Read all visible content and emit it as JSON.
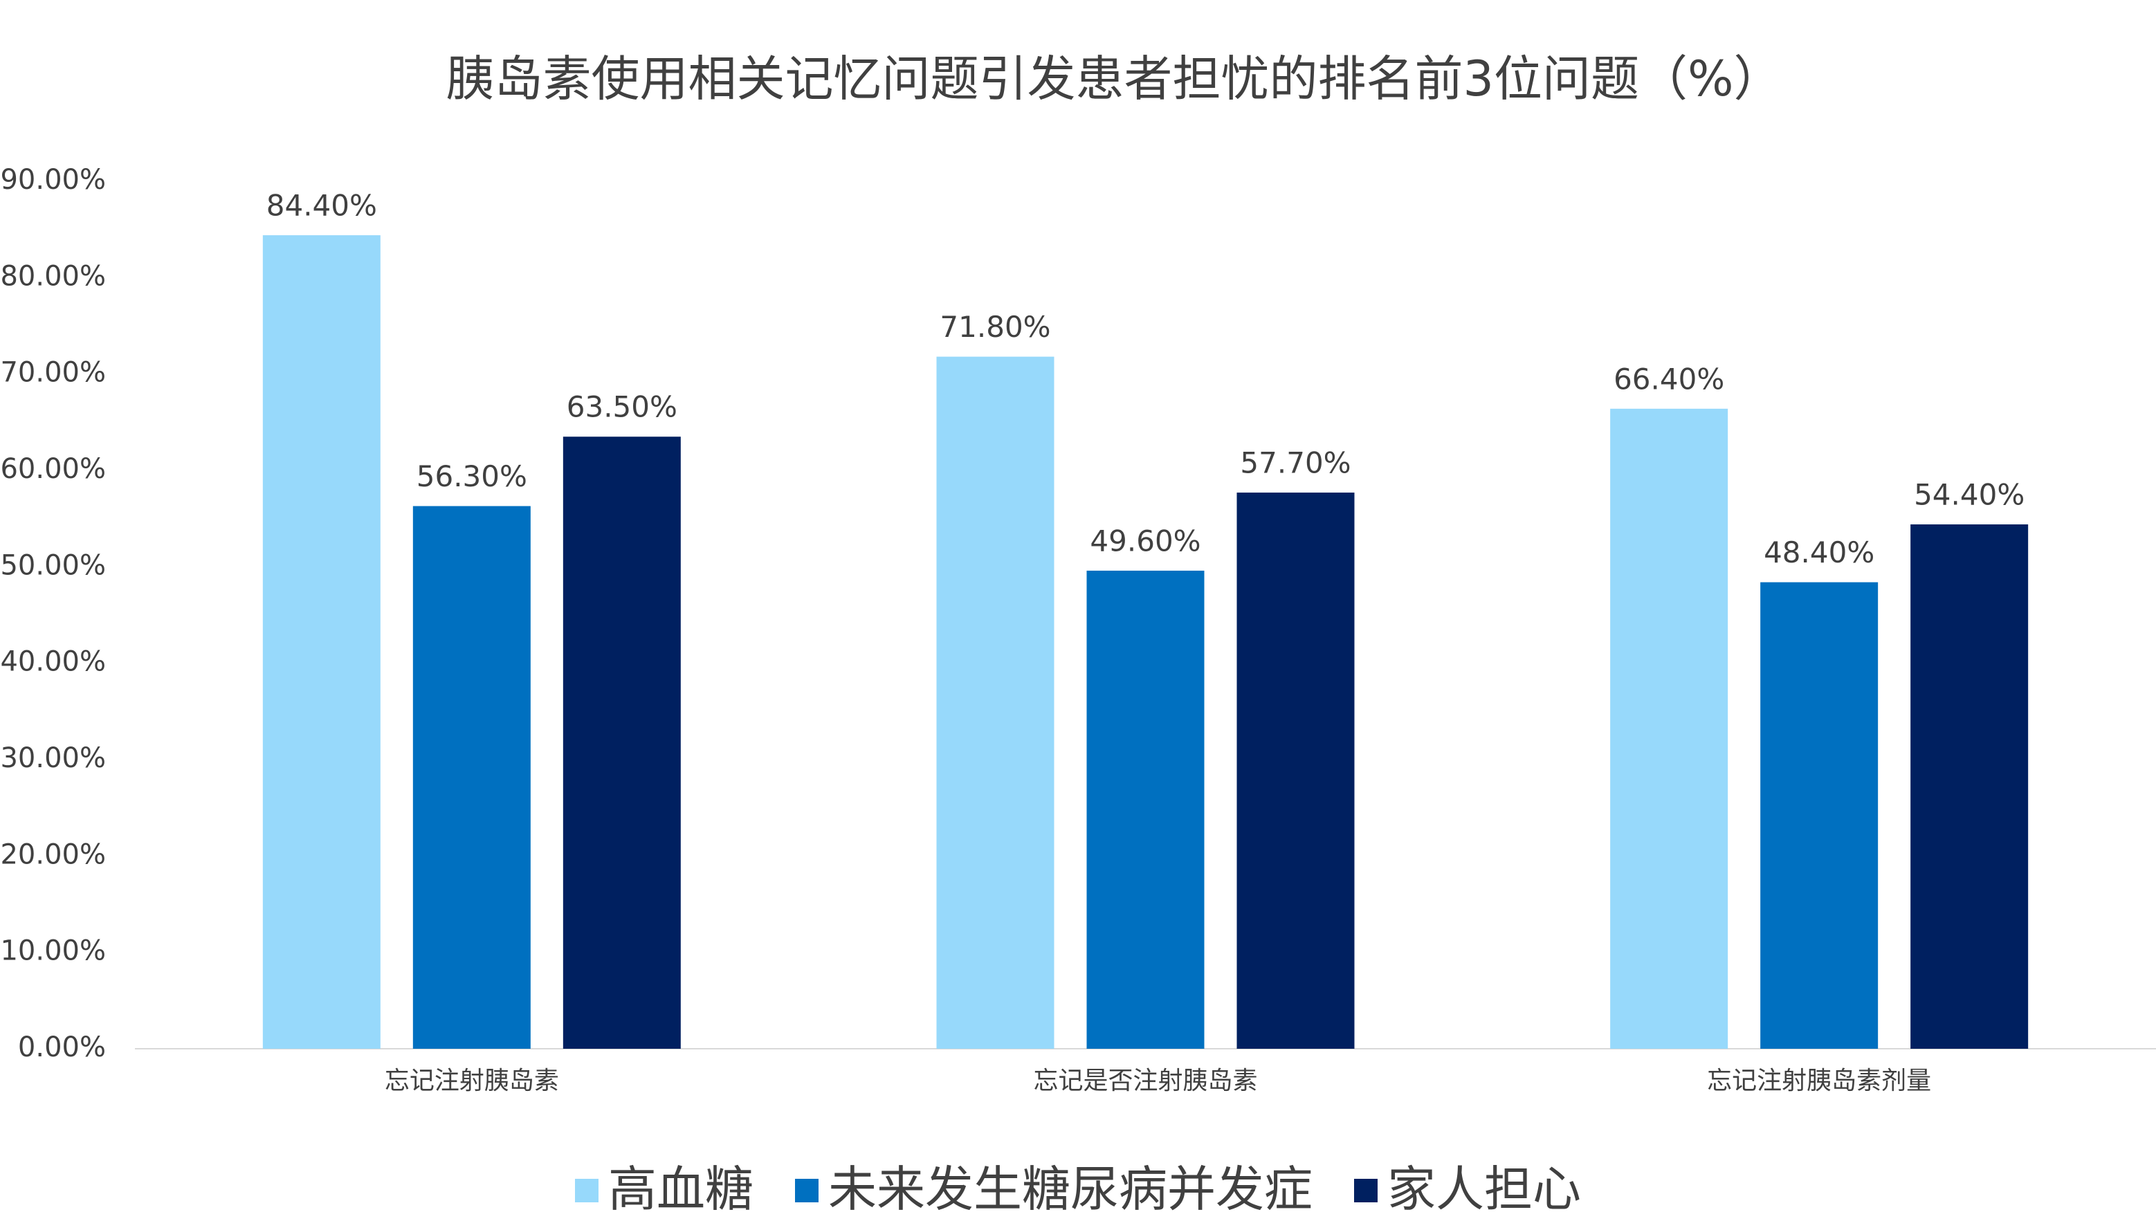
{
  "chart_data": {
    "type": "bar",
    "title": "胰岛素使用相关记忆问题引发患者担忧的排名前3位问题（%）",
    "categories": [
      "忘记注射胰岛素",
      "忘记是否注射胰岛素",
      "忘记注射胰岛素剂量"
    ],
    "series": [
      {
        "name": "高血糖",
        "color": "#97d9fb",
        "values": [
          84.4,
          71.8,
          66.4
        ],
        "value_labels": [
          "84.40%",
          "71.80%",
          "66.40%"
        ]
      },
      {
        "name": "未来发生糖尿病并发症",
        "color": "#0070c0",
        "values": [
          56.3,
          49.6,
          48.4
        ],
        "value_labels": [
          "56.30%",
          "49.60%",
          "48.40%"
        ]
      },
      {
        "name": "家人担心",
        "color": "#002060",
        "values": [
          63.5,
          57.7,
          54.4
        ],
        "value_labels": [
          "63.50%",
          "57.70%",
          "54.40%"
        ]
      }
    ],
    "ylim": [
      0,
      90
    ],
    "yticks": [
      {
        "value": 0,
        "label": "0.00%"
      },
      {
        "value": 10,
        "label": "10.00%"
      },
      {
        "value": 20,
        "label": "20.00%"
      },
      {
        "value": 30,
        "label": "30.00%"
      },
      {
        "value": 40,
        "label": "40.00%"
      },
      {
        "value": 50,
        "label": "50.00%"
      },
      {
        "value": 60,
        "label": "60.00%"
      },
      {
        "value": 70,
        "label": "70.00%"
      },
      {
        "value": 80,
        "label": "80.00%"
      },
      {
        "value": 90,
        "label": "90.00%"
      }
    ],
    "grid": false,
    "legend": "bottom"
  }
}
